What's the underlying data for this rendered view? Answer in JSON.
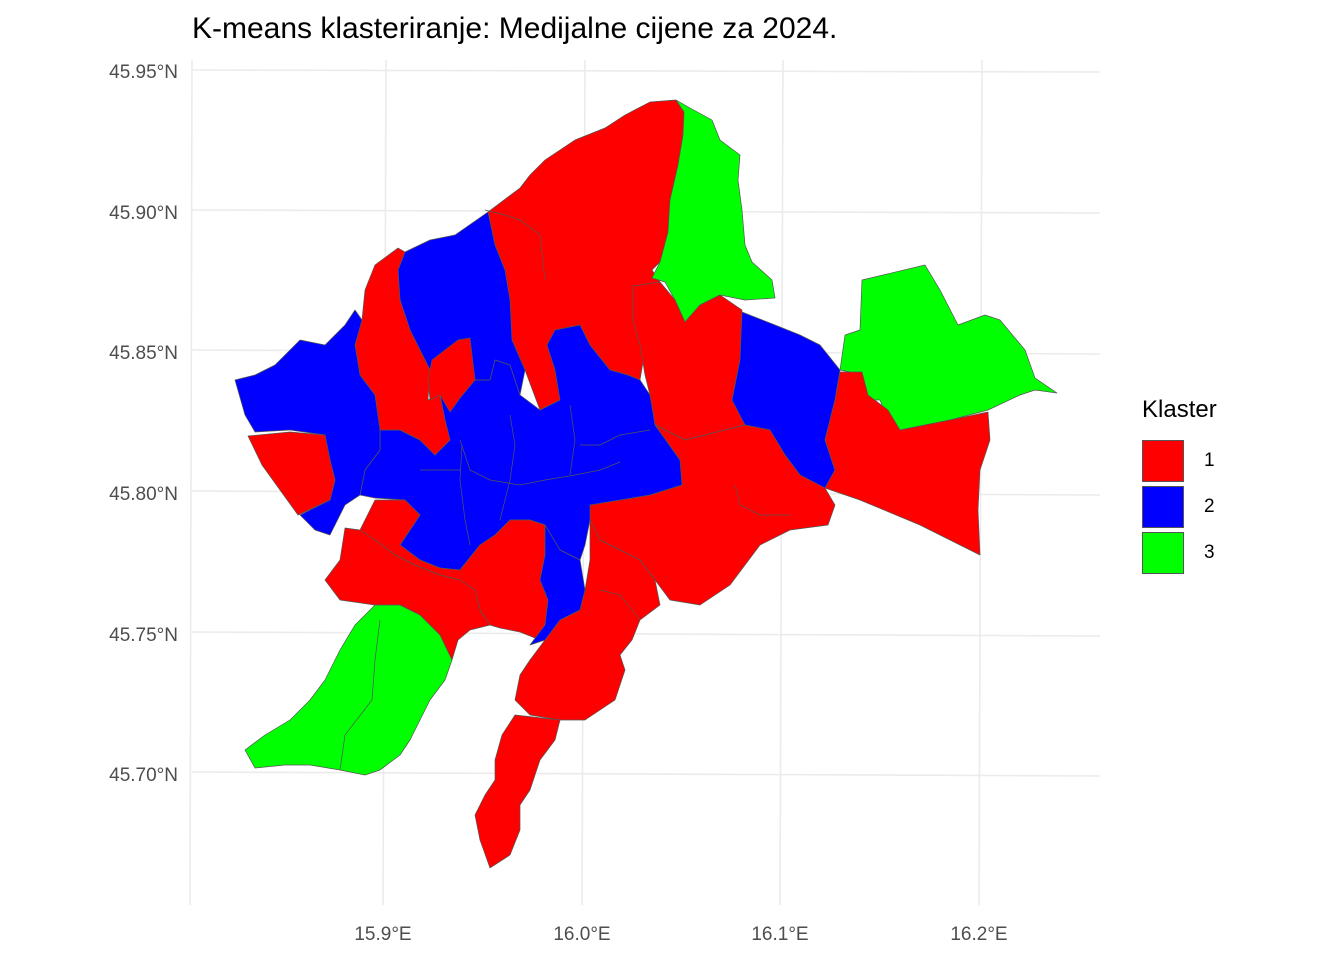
{
  "title": "K-means klasteriranje: Medijalne cijene za 2024.",
  "axes": {
    "lat_ticks": [
      "45.95°N",
      "45.90°N",
      "45.85°N",
      "45.80°N",
      "45.75°N",
      "45.70°N"
    ],
    "lon_ticks": [
      "15.9°E",
      "16.0°E",
      "16.1°E",
      "16.2°E"
    ]
  },
  "legend": {
    "title": "Klaster",
    "items": [
      {
        "label": "1",
        "color": "#FF0000"
      },
      {
        "label": "2",
        "color": "#0000FF"
      },
      {
        "label": "3",
        "color": "#00FF00"
      }
    ]
  },
  "chart_data": {
    "type": "choropleth",
    "title": "K-means klasteriranje: Medijalne cijene za 2024.",
    "legend_title": "Klaster",
    "xlim": [
      15.81,
      16.26
    ],
    "ylim": [
      45.66,
      45.95
    ],
    "grid": true,
    "legend_position": "right",
    "clusters": [
      {
        "cluster": "1",
        "color": "#FF0000"
      },
      {
        "cluster": "2",
        "color": "#0000FF"
      },
      {
        "cluster": "3",
        "color": "#00FF00"
      }
    ]
  }
}
